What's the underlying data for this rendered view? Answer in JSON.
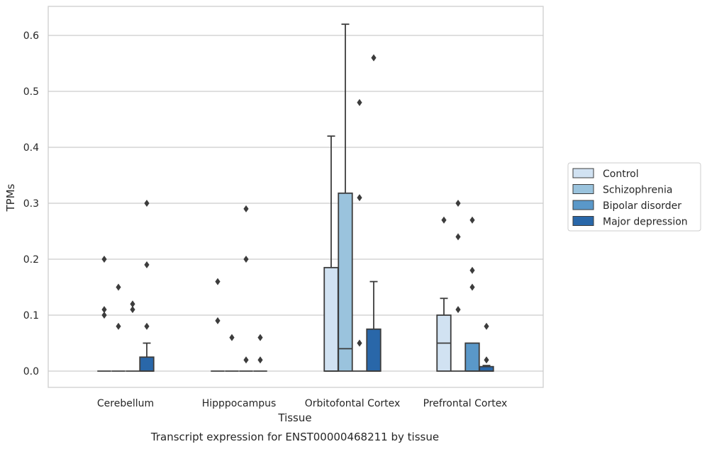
{
  "chart_data": {
    "type": "box",
    "title": "",
    "caption": "Transcript expression for ENST00000468211 by tissue",
    "xlabel": "Tissue",
    "ylabel": "TPMs",
    "ylim": [
      -0.03,
      0.65
    ],
    "yticks": [
      0.0,
      0.1,
      0.2,
      0.3,
      0.4,
      0.5,
      0.6
    ],
    "ytick_labels": [
      "0.0",
      "0.1",
      "0.2",
      "0.3",
      "0.4",
      "0.5",
      "0.6"
    ],
    "grid": "horizontal",
    "legend_position": "right",
    "categories": [
      "Cerebellum",
      "Hipppocampus",
      "Orbitofontal Cortex",
      "Prefrontal Cortex"
    ],
    "series": [
      {
        "name": "Control",
        "color": "#d1e2f2",
        "boxes": [
          {
            "q1": 0,
            "median": 0,
            "q3": 0,
            "whislo": 0,
            "whishi": 0,
            "fliers": [
              0.2,
              0.11,
              0.1
            ]
          },
          {
            "q1": 0,
            "median": 0,
            "q3": 0,
            "whislo": 0,
            "whishi": 0,
            "fliers": [
              0.16,
              0.09
            ]
          },
          {
            "q1": 0,
            "median": 0,
            "q3": 0.185,
            "whislo": 0,
            "whishi": 0.42,
            "fliers": []
          },
          {
            "q1": 0,
            "median": 0.05,
            "q3": 0.1,
            "whislo": 0,
            "whishi": 0.13,
            "fliers": [
              0.27
            ]
          }
        ]
      },
      {
        "name": "Schizophrenia",
        "color": "#9ac3dd",
        "boxes": [
          {
            "q1": 0,
            "median": 0,
            "q3": 0,
            "whislo": 0,
            "whishi": 0,
            "fliers": [
              0.15,
              0.08
            ]
          },
          {
            "q1": 0,
            "median": 0,
            "q3": 0,
            "whislo": 0,
            "whishi": 0,
            "fliers": [
              0.06
            ]
          },
          {
            "q1": 0,
            "median": 0.04,
            "q3": 0.318,
            "whislo": 0,
            "whishi": 0.62,
            "fliers": []
          },
          {
            "q1": 0,
            "median": 0,
            "q3": 0,
            "whislo": 0,
            "whishi": 0,
            "fliers": [
              0.3,
              0.24,
              0.11
            ]
          }
        ]
      },
      {
        "name": "Bipolar disorder",
        "color": "#5a98c9",
        "boxes": [
          {
            "q1": 0,
            "median": 0,
            "q3": 0,
            "whislo": 0,
            "whishi": 0,
            "fliers": [
              0.12,
              0.11
            ]
          },
          {
            "q1": 0,
            "median": 0,
            "q3": 0,
            "whislo": 0,
            "whishi": 0,
            "fliers": [
              0.29,
              0.2,
              0.02
            ]
          },
          {
            "q1": 0,
            "median": 0,
            "q3": 0,
            "whislo": 0,
            "whishi": 0,
            "fliers": [
              0.48,
              0.31,
              0.05
            ]
          },
          {
            "q1": 0,
            "median": 0,
            "q3": 0.05,
            "whislo": 0,
            "whishi": 0.05,
            "fliers": [
              0.27,
              0.18,
              0.15
            ]
          }
        ]
      },
      {
        "name": "Major depression",
        "color": "#2967a9",
        "boxes": [
          {
            "q1": 0,
            "median": 0,
            "q3": 0.025,
            "whislo": 0,
            "whishi": 0.05,
            "fliers": [
              0.3,
              0.19,
              0.08
            ]
          },
          {
            "q1": 0,
            "median": 0,
            "q3": 0,
            "whislo": 0,
            "whishi": 0,
            "fliers": [
              0.06,
              0.02
            ]
          },
          {
            "q1": 0,
            "median": 0,
            "q3": 0.075,
            "whislo": 0,
            "whishi": 0.16,
            "fliers": [
              0.56
            ]
          },
          {
            "q1": 0,
            "median": 0,
            "q3": 0.008,
            "whislo": 0,
            "whishi": 0.01,
            "fliers": [
              0.08,
              0.02
            ]
          }
        ]
      }
    ]
  }
}
